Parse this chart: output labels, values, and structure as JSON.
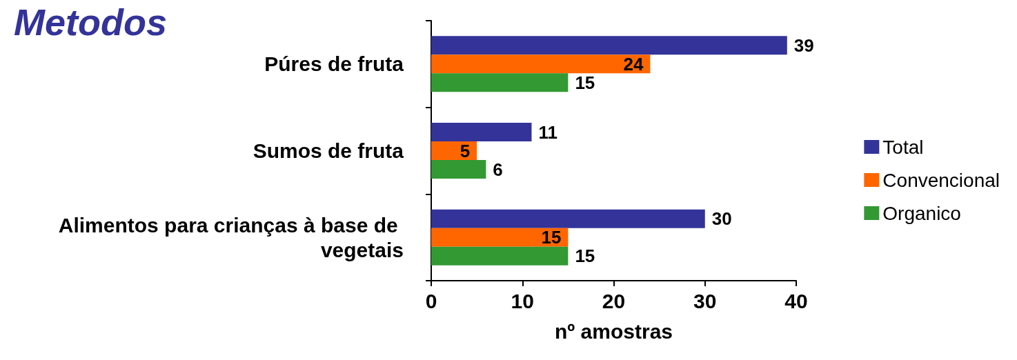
{
  "chart_data": {
    "type": "bar",
    "orientation": "horizontal",
    "title": "Metodos",
    "xlabel": "nº amostras",
    "categories": [
      "Púres de fruta",
      "Sumos de fruta",
      "Alimentos para crianças à base de vegetais"
    ],
    "series": [
      {
        "name": "Total",
        "color": "#333399",
        "values": [
          39,
          11,
          30
        ]
      },
      {
        "name": "Convencional",
        "color": "#ff6600",
        "values": [
          24,
          5,
          15
        ]
      },
      {
        "name": "Organico",
        "color": "#339933",
        "values": [
          15,
          6,
          15
        ]
      }
    ],
    "xlim": [
      0,
      40
    ],
    "xticks": [
      0,
      10,
      20,
      30,
      40
    ],
    "grid": false,
    "legend": "right",
    "data_labels": true
  }
}
